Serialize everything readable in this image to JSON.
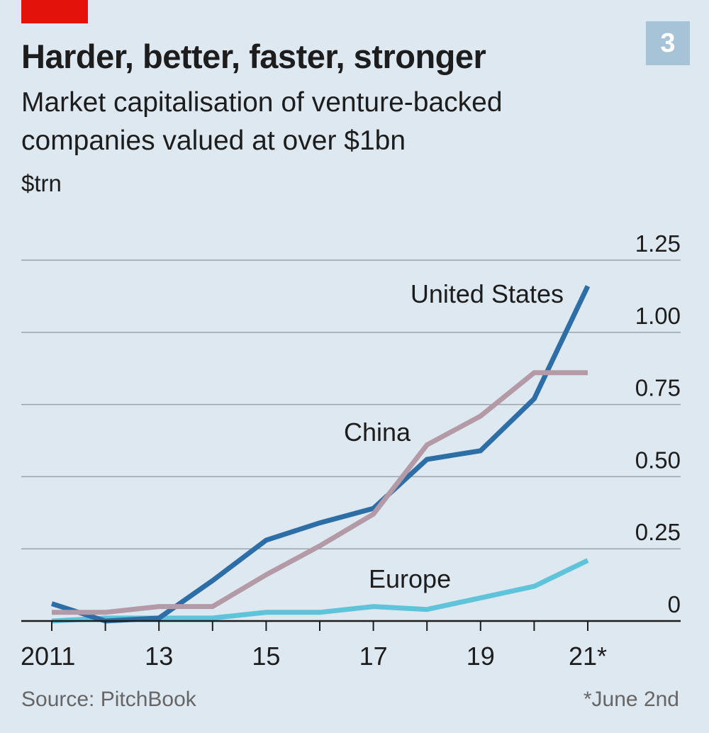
{
  "header": {
    "title": "Harder, better, faster, stronger",
    "subtitle": "Market capitalisation of venture-backed companies valued at over $1bn",
    "unit": "$trn",
    "badge": "3"
  },
  "footer": {
    "source": "Source: PitchBook",
    "note": "*June 2nd"
  },
  "colors": {
    "accent": "#e3120b",
    "background": "#dde8f0",
    "united_states": "#2e6ea6",
    "china": "#b39aa6",
    "europe": "#5fc4d9"
  },
  "chart_data": {
    "type": "line",
    "x": [
      2011,
      2012,
      2013,
      2014,
      2015,
      2016,
      2017,
      2018,
      2019,
      2020,
      2021
    ],
    "x_tick_values": [
      2011,
      2013,
      2015,
      2017,
      2019,
      2021
    ],
    "x_tick_labels": [
      "2011",
      "13",
      "15",
      "17",
      "19",
      "21*"
    ],
    "y_ticks": [
      0,
      0.25,
      0.5,
      0.75,
      1.0,
      1.25
    ],
    "y_tick_labels": [
      "0",
      "0.25",
      "0.50",
      "0.75",
      "1.00",
      "1.25"
    ],
    "ylim": [
      0,
      1.25
    ],
    "xlim": [
      2011,
      2021
    ],
    "grid": true,
    "series": [
      {
        "name": "United States",
        "values": [
          0.06,
          0.0,
          0.01,
          0.14,
          0.28,
          0.34,
          0.39,
          0.56,
          0.59,
          0.77,
          1.16
        ]
      },
      {
        "name": "China",
        "values": [
          0.03,
          0.03,
          0.05,
          0.05,
          0.16,
          0.26,
          0.37,
          0.61,
          0.71,
          0.86,
          0.86
        ]
      },
      {
        "name": "Europe",
        "values": [
          0.0,
          0.01,
          0.01,
          0.01,
          0.03,
          0.03,
          0.05,
          0.04,
          0.08,
          0.12,
          0.21
        ]
      }
    ]
  }
}
